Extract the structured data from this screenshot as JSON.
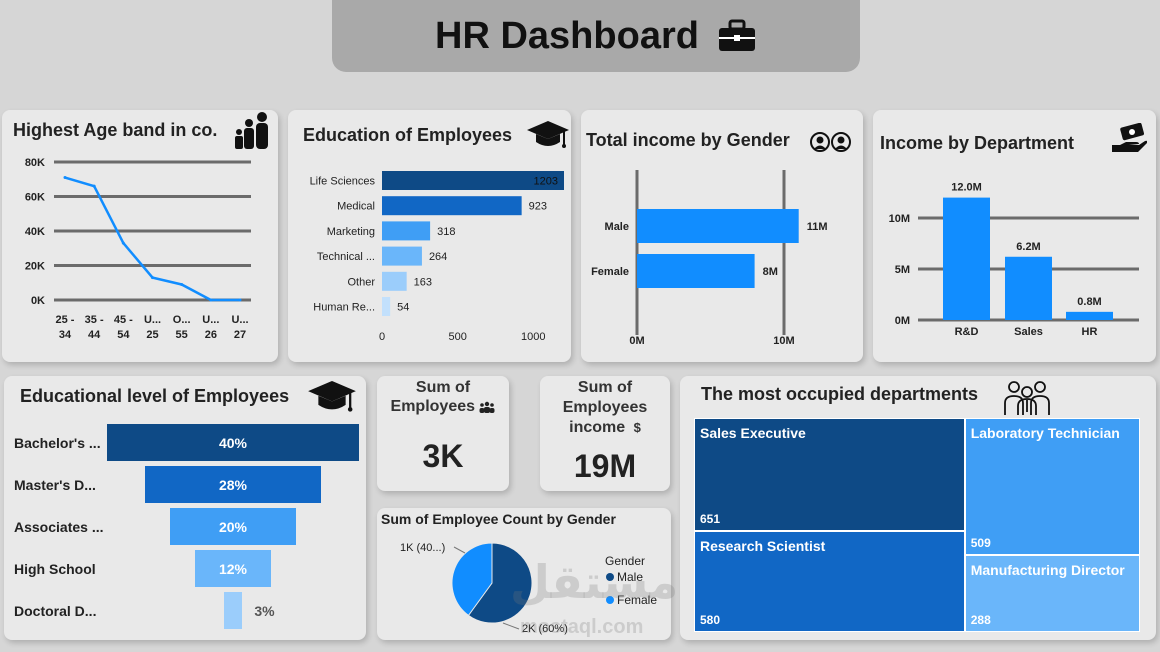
{
  "header": {
    "title": "HR Dashboard",
    "icon": "briefcase-icon"
  },
  "age_chart": {
    "title": "Highest Age band in co.",
    "icon": "family-icon",
    "chart_data": {
      "type": "line",
      "categories": [
        [
          "25 -",
          "34"
        ],
        [
          "35 -",
          "44"
        ],
        [
          "45 -",
          "54"
        ],
        [
          "U...",
          "25"
        ],
        [
          "O...",
          "55"
        ],
        [
          "U...",
          "26"
        ],
        [
          "U...",
          "27"
        ]
      ],
      "values": [
        71000,
        66000,
        33000,
        13000,
        9000,
        0,
        0
      ],
      "yticks": [
        "80K",
        "60K",
        "40K",
        "20K",
        "0K"
      ],
      "ylim": [
        0,
        80000
      ],
      "color": "#118dff"
    }
  },
  "education_chart": {
    "title": "Education of Employees",
    "icon": "graduation-cap-icon",
    "chart_data": {
      "type": "bar",
      "orientation": "horizontal",
      "categories": [
        "Life Sciences",
        "Medical",
        "Marketing",
        "Technical ...",
        "Other",
        "Human Re..."
      ],
      "values": [
        1203,
        923,
        318,
        264,
        163,
        54
      ],
      "value_labels": [
        "1203",
        "923",
        "318",
        "264",
        "163",
        "54"
      ],
      "colors": [
        "#0e4a86",
        "#1167c5",
        "#3f9ef5",
        "#6ab6fa",
        "#9bcdfb",
        "#c2e0fc"
      ],
      "xticks": [
        "0",
        "500",
        "1000"
      ],
      "xlim": [
        0,
        1203
      ]
    }
  },
  "gender_income_chart": {
    "title": "Total income by Gender",
    "icon": "users-icon",
    "chart_data": {
      "type": "bar",
      "orientation": "horizontal",
      "categories": [
        "Male",
        "Female"
      ],
      "values": [
        11,
        8
      ],
      "value_labels": [
        "11M",
        "8M"
      ],
      "xticks": [
        "0M",
        "10M"
      ],
      "xlim": [
        0,
        10
      ],
      "color": "#118dff"
    }
  },
  "dept_income_chart": {
    "title": "Income by Department",
    "icon": "money-hand-icon",
    "chart_data": {
      "type": "bar",
      "categories": [
        "R&D",
        "Sales",
        "HR"
      ],
      "values": [
        12.0,
        6.2,
        0.8
      ],
      "value_labels": [
        "12.0M",
        "6.2M",
        "0.8M"
      ],
      "yticks": [
        "10M",
        "5M",
        "0M"
      ],
      "ylim": [
        0,
        10
      ],
      "color": "#118dff"
    }
  },
  "edu_level_chart": {
    "title": "Educational level of Employees",
    "icon": "graduation-cap-icon",
    "chart_data": {
      "type": "bar",
      "subtype": "funnel",
      "categories": [
        "Bachelor's ...",
        "Master's D...",
        "Associates ...",
        "High School",
        "Doctoral D..."
      ],
      "values": [
        40,
        28,
        20,
        12,
        3
      ],
      "value_labels": [
        "40%",
        "28%",
        "20%",
        "12%",
        "3%"
      ],
      "colors": [
        "#0e4a86",
        "#1167c5",
        "#3f9ef5",
        "#6ab6fa",
        "#9bcdfb"
      ]
    }
  },
  "kpi_employees": {
    "title_line1": "Sum of",
    "title_line2": "Employees",
    "icon": "people-group-icon",
    "value": "3K"
  },
  "kpi_income": {
    "title_line1": "Sum of",
    "title_line2": "Employees",
    "title_line3": "income",
    "icon": "dollar-icon",
    "value": "19M"
  },
  "gender_count_chart": {
    "title": "Sum of Employee Count by Gender",
    "chart_data": {
      "type": "pie",
      "categories": [
        "Male",
        "Female"
      ],
      "values": [
        60,
        40
      ],
      "value_labels": [
        "2K (60%)",
        "1K (40...)"
      ],
      "colors": [
        "#0e4a86",
        "#118dff"
      ],
      "legend_title": "Gender",
      "legend_placement": "right"
    }
  },
  "departments_treemap": {
    "title": "The most occupied departments",
    "icon": "team-icon",
    "chart_data": {
      "type": "heatmap",
      "subtype": "treemap",
      "categories": [
        "Sales Executive",
        "Research Scientist",
        "Laboratory Technician",
        "Manufacturing Director"
      ],
      "values": [
        651,
        580,
        509,
        288
      ],
      "value_labels": [
        "651",
        "580",
        "509",
        "288"
      ],
      "colors": [
        "#0e4a86",
        "#1167c5",
        "#3f9ef5",
        "#6ab6fa"
      ]
    }
  },
  "watermark": {
    "arabic": "مستقل",
    "site": "mostaql.com"
  }
}
